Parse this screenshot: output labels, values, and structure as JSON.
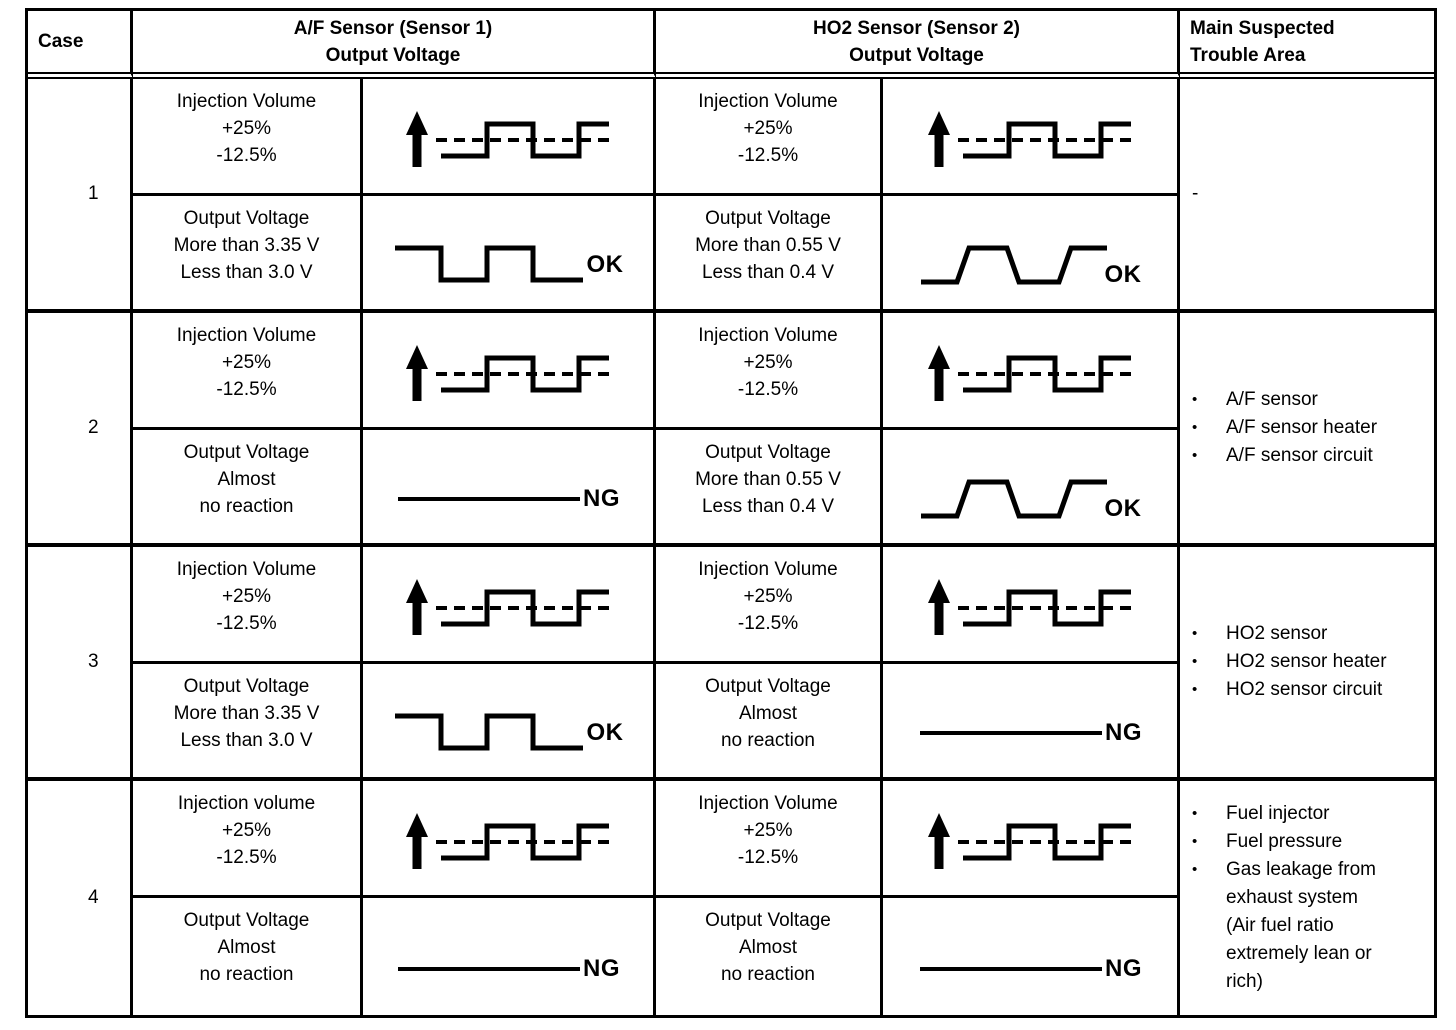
{
  "header": {
    "case": "Case",
    "af": {
      "line1": "A/F Sensor (Sensor 1)",
      "line2": "Output Voltage"
    },
    "ho2": {
      "line1": "HO2 Sensor (Sensor 2)",
      "line2": "Output Voltage"
    },
    "trouble": {
      "line1": "Main Suspected",
      "line2": "Trouble Area"
    }
  },
  "icons": {
    "bullet": "•"
  },
  "cases": [
    {
      "number": "1",
      "af": {
        "injection_lines": [
          "Injection Volume",
          "+25%",
          "-12.5%"
        ],
        "injection_wave": "modulated",
        "output_lines": [
          "Output Voltage",
          "More than 3.35 V",
          "Less than 3.0 V"
        ],
        "output_wave": "square",
        "output_result": "OK"
      },
      "ho2": {
        "injection_lines": [
          "Injection Volume",
          "+25%",
          "-12.5%"
        ],
        "injection_wave": "modulated",
        "output_lines": [
          "Output Voltage",
          "More than 0.55 V",
          "Less than 0.4 V"
        ],
        "output_wave": "trapezoid",
        "output_result": "OK"
      },
      "trouble": {
        "text": "-",
        "items": []
      }
    },
    {
      "number": "2",
      "af": {
        "injection_lines": [
          "Injection Volume",
          "+25%",
          "-12.5%"
        ],
        "injection_wave": "modulated",
        "output_lines": [
          "Output Voltage",
          "Almost",
          "no reaction"
        ],
        "output_wave": "flat",
        "output_result": "NG"
      },
      "ho2": {
        "injection_lines": [
          "Injection Volume",
          "+25%",
          "-12.5%"
        ],
        "injection_wave": "modulated",
        "output_lines": [
          "Output Voltage",
          "More than 0.55 V",
          "Less than 0.4 V"
        ],
        "output_wave": "trapezoid",
        "output_result": "OK"
      },
      "trouble": {
        "text": "",
        "items": [
          "A/F sensor",
          "A/F sensor heater",
          "A/F sensor circuit"
        ]
      }
    },
    {
      "number": "3",
      "af": {
        "injection_lines": [
          "Injection Volume",
          "+25%",
          "-12.5%"
        ],
        "injection_wave": "modulated",
        "output_lines": [
          "Output Voltage",
          "More than 3.35 V",
          "Less than 3.0 V"
        ],
        "output_wave": "square",
        "output_result": "OK"
      },
      "ho2": {
        "injection_lines": [
          "Injection Volume",
          "+25%",
          "-12.5%"
        ],
        "injection_wave": "modulated",
        "output_lines": [
          "Output Voltage",
          "Almost",
          "no reaction"
        ],
        "output_wave": "flat",
        "output_result": "NG"
      },
      "trouble": {
        "text": "",
        "items": [
          "HO2 sensor",
          "HO2 sensor heater",
          "HO2 sensor circuit"
        ]
      }
    },
    {
      "number": "4",
      "af": {
        "injection_lines": [
          "Injection volume",
          "+25%",
          "-12.5%"
        ],
        "injection_wave": "modulated",
        "output_lines": [
          "Output Voltage",
          "Almost",
          "no reaction"
        ],
        "output_wave": "flat",
        "output_result": "NG"
      },
      "ho2": {
        "injection_lines": [
          "Injection Volume",
          "+25%",
          "-12.5%"
        ],
        "injection_wave": "modulated",
        "output_lines": [
          "Output Voltage",
          "Almost",
          "no reaction"
        ],
        "output_wave": "flat",
        "output_result": "NG"
      },
      "trouble": {
        "text": "",
        "items": [
          "Fuel injector",
          "Fuel pressure",
          "Gas leakage from exhaust system (Air fuel ratio extremely lean or rich)"
        ]
      }
    }
  ]
}
